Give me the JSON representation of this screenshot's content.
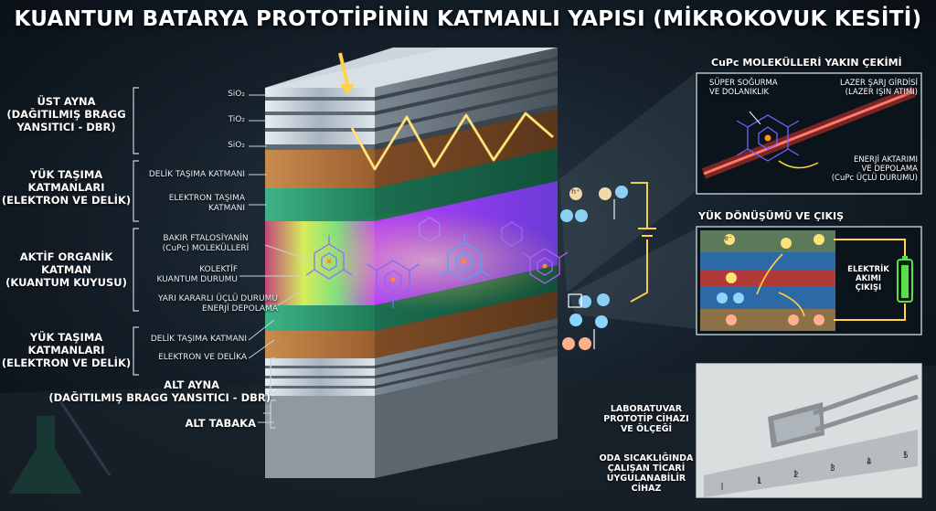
{
  "title": "KUANTUM BATARYA PROTOTİPİNİN KATMANLI YAPISI (MİKROKOVUK KESİTİ)",
  "left_groups": {
    "top_mirror": [
      "ÜST AYNA",
      "(DAĞITILMIŞ BRAGG",
      "YANSITICI - DBR)"
    ],
    "transport_top": [
      "YÜK TAŞIMA",
      "KATMANLARI",
      "(ELEKTRON VE DELİK)"
    ],
    "active": [
      "AKTİF ORGANİK",
      "KATMAN",
      "(KUANTUM KUYUSU)"
    ],
    "transport_bottom": [
      "YÜK TAŞIMA",
      "KATMANLARI",
      "(ELEKTRON VE DELİK)"
    ],
    "bottom_mirror": [
      "ALT AYNA",
      "(DAĞITILMIŞ BRAGG YANSITICI - DBR)"
    ],
    "substrate": "ALT TABAKA"
  },
  "layer_labels": {
    "sio2_1": "SiO₂",
    "tio2": "TiO₂",
    "sio2_2": "SiO₂",
    "hole_top": "DELİK TAŞIMA KATMANI",
    "electron_top": [
      "ELEKTRON TAŞIMA",
      "KATMANI"
    ],
    "cupc": [
      "BAKIR FTALOSİYANİN",
      "(CuPc) MOLEKÜLLERİ"
    ],
    "collective": [
      "KOLEKTİF",
      "KUANTUM DURUMU"
    ],
    "metastable": [
      "YARI KARARLI ÜÇLÜ DURUMU",
      "ENERJİ DEPOLAMA"
    ],
    "hole_bottom": "DELİK TAŞIMA KATMANI",
    "electron_bottom": "ELEKTRON VE DELİKA"
  },
  "closeup_panel": {
    "title": "CuPc MOLEKÜLLERİ YAKIN ÇEKİMİ",
    "absorb": [
      "SÜPER SOĞURMA",
      "VE DOLANIKLIK"
    ],
    "laser": [
      "LAZER ŞARJ GİRDİSİ",
      "(LAZER IŞIN ATIMI)"
    ],
    "energy": [
      "ENERJİ AKTARIMI",
      "VE DEPOLAMA",
      "(CuPc ÜÇLÜ DURUMU)"
    ]
  },
  "conversion_panel": {
    "title": "YÜK DÖNÜŞÜMÜ VE ÇIKIŞ",
    "output": [
      "ELEKTRİK",
      "AKIMI",
      "ÇIKIŞI"
    ],
    "e_symbol": "e⁻",
    "h_symbol": "h⁺"
  },
  "device": {
    "lab": [
      "LABORATUVAR",
      "PROTOTİP CİHAZI",
      "VE ÖLÇEĞİ"
    ],
    "room": [
      "ODA SICAKLIĞINDA",
      "ÇALIŞAN TİCARİ",
      "UYGULANABİLİR CİHAZ"
    ],
    "ruler_numbers": [
      "1",
      "2",
      "3",
      "4",
      "5"
    ]
  },
  "colors": {
    "orange_layer": "#b8773f",
    "green_layer": "#2e9a72",
    "silver_layer": "#c9d2da",
    "light_beam": "#ffd24a",
    "laser_beam": "#ff3b30",
    "battery": "#57e04a"
  }
}
